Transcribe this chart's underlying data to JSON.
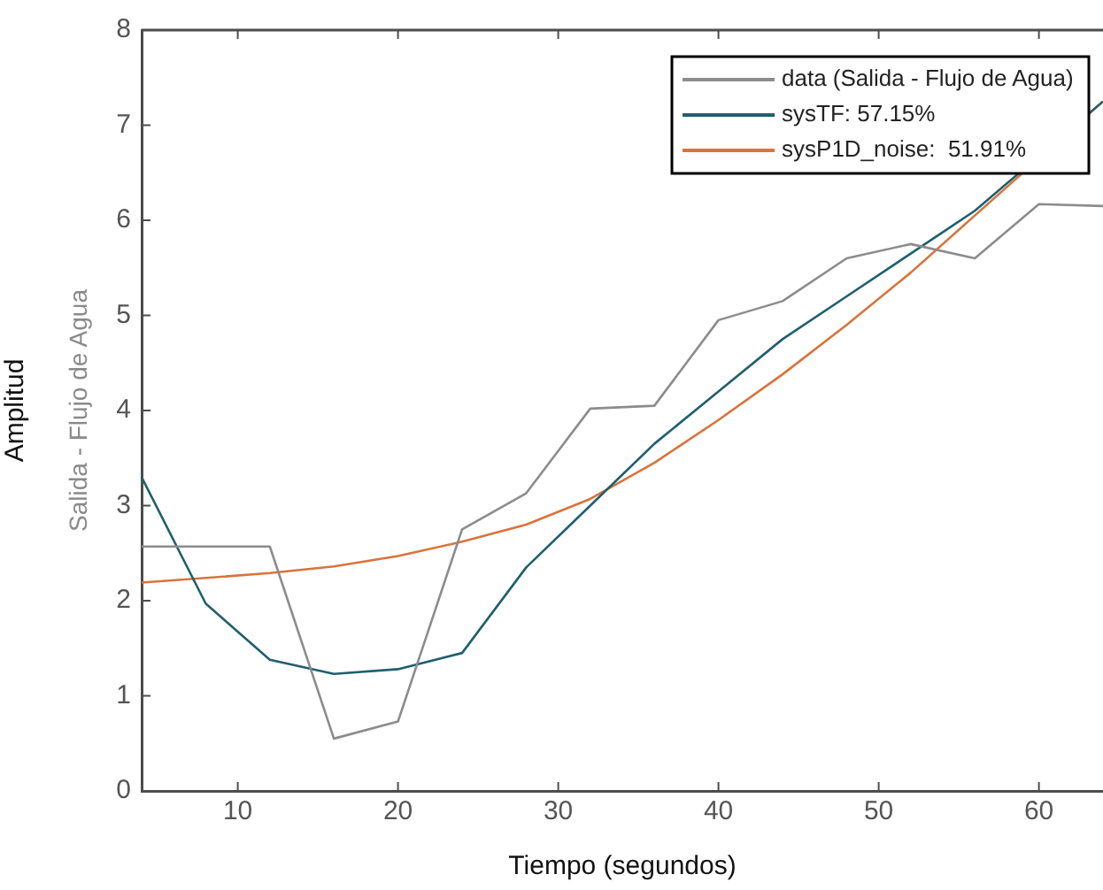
{
  "chart_data": {
    "type": "line",
    "xlabel": "Tiempo (segundos)",
    "ylabel": "Amplitud",
    "annotations": [
      "Salida - Flujo de Agua"
    ],
    "x": [
      4,
      8,
      12,
      16,
      20,
      24,
      28,
      32,
      36,
      40,
      44,
      48,
      52,
      56,
      60,
      64
    ],
    "xlim": [
      4,
      64
    ],
    "xticks": [
      10,
      20,
      30,
      40,
      50,
      60
    ],
    "ylim": [
      0,
      8
    ],
    "yticks": [
      0,
      1,
      2,
      3,
      4,
      5,
      6,
      7,
      8
    ],
    "grid": false,
    "legend": "top right",
    "marker": "none",
    "line_style": "solid",
    "series": [
      {
        "name": "data (Salida - Flujo de Agua)",
        "color": "#8c8c8c",
        "values": [
          2.57,
          2.57,
          2.57,
          0.55,
          0.73,
          2.75,
          3.13,
          4.02,
          4.05,
          4.95,
          5.15,
          5.6,
          5.75,
          5.6,
          6.17,
          6.15
        ]
      },
      {
        "name": "sysTF: 57.15%",
        "color": "#1f5f6e",
        "values": [
          3.3,
          1.97,
          1.38,
          1.23,
          1.28,
          1.45,
          2.35,
          3.0,
          3.65,
          4.2,
          4.75,
          5.2,
          5.65,
          6.1,
          null,
          7.25
        ]
      },
      {
        "name": "sysP1D_noise:  51.91%",
        "color": "#d9733c",
        "values": [
          2.19,
          2.24,
          2.29,
          2.36,
          2.47,
          2.62,
          2.8,
          3.07,
          3.45,
          3.9,
          4.38,
          4.9,
          5.45,
          6.05,
          null,
          7.25
        ]
      }
    ]
  }
}
